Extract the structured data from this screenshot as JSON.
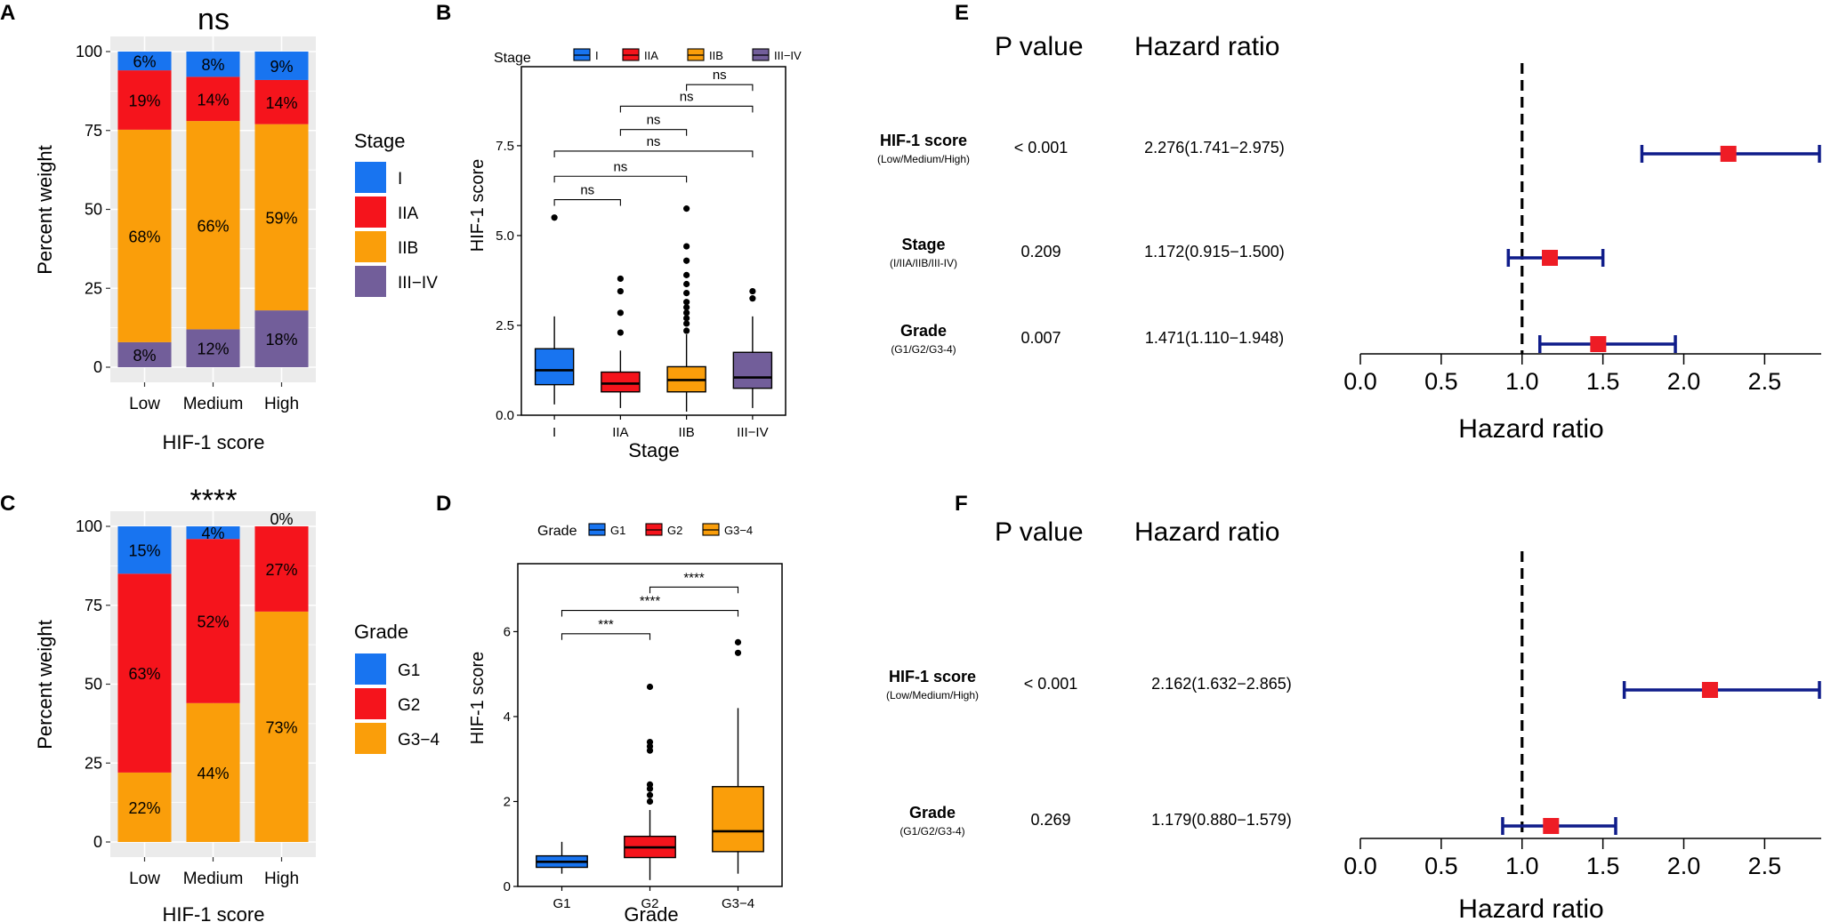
{
  "colors": {
    "blue": "#1874f0",
    "red": "#f5141c",
    "orange": "#fa9e0a",
    "purple": "#725e9a",
    "panel_bg": "#ebebeb",
    "forest_line": "#0f1c8a",
    "forest_point": "#ee1c25"
  },
  "chart_data": [
    {
      "id": "A",
      "type": "bar",
      "stacked": true,
      "title": "ns",
      "xlabel": "HIF-1 score",
      "ylabel": "Percent weight",
      "categories": [
        "Low",
        "Medium",
        "High"
      ],
      "ylim": [
        0,
        100
      ],
      "yticks": [
        "0",
        "25",
        "50",
        "75",
        "100"
      ],
      "legend_title": "Stage",
      "legend_position": "right",
      "series": [
        {
          "name": "III−IV",
          "color_key": "purple",
          "values": [
            8,
            12,
            18
          ],
          "labels": [
            "8%",
            "12%",
            "18%"
          ]
        },
        {
          "name": "IIB",
          "color_key": "orange",
          "values": [
            68,
            66,
            59
          ],
          "labels": [
            "68%",
            "66%",
            "59%"
          ]
        },
        {
          "name": "IIA",
          "color_key": "red",
          "values": [
            19,
            14,
            14
          ],
          "labels": [
            "19%",
            "14%",
            "14%"
          ]
        },
        {
          "name": "I",
          "color_key": "blue",
          "values": [
            6,
            8,
            9
          ],
          "labels": [
            "6%",
            "8%",
            "9%"
          ]
        }
      ]
    },
    {
      "id": "B",
      "type": "box",
      "xlabel": "Stage",
      "ylabel": "HIF-1 score",
      "categories": [
        "I",
        "IIA",
        "IIB",
        "III−IV"
      ],
      "ylim": [
        0,
        9.7
      ],
      "yticks": [
        "0.0",
        "2.5",
        "5.0",
        "7.5"
      ],
      "legend_title": "Stage",
      "legend_position": "top",
      "boxes": [
        {
          "q1": 0.85,
          "median": 1.25,
          "q3": 1.85,
          "whisker_low": 0.3,
          "whisker_high": 2.75,
          "outliers": [
            5.5
          ],
          "color_key": "blue"
        },
        {
          "q1": 0.65,
          "median": 0.88,
          "q3": 1.2,
          "whisker_low": 0.2,
          "whisker_high": 1.8,
          "outliers": [
            2.3,
            2.85,
            3.45,
            3.8
          ],
          "color_key": "red"
        },
        {
          "q1": 0.65,
          "median": 0.98,
          "q3": 1.35,
          "whisker_low": 0.1,
          "whisker_high": 2.25,
          "outliers": [
            2.35,
            2.55,
            2.7,
            2.85,
            3.0,
            3.15,
            3.4,
            3.65,
            3.9,
            4.3,
            4.7,
            5.75
          ],
          "color_key": "orange"
        },
        {
          "q1": 0.75,
          "median": 1.05,
          "q3": 1.75,
          "whisker_low": 0.2,
          "whisker_high": 2.75,
          "outliers": [
            3.25,
            3.45
          ],
          "color_key": "purple"
        }
      ],
      "comparisons": [
        {
          "from": 0,
          "to": 1,
          "y": 6.0,
          "label": "ns"
        },
        {
          "from": 0,
          "to": 2,
          "y": 6.65,
          "label": "ns"
        },
        {
          "from": 0,
          "to": 3,
          "y": 7.35,
          "label": "ns"
        },
        {
          "from": 1,
          "to": 2,
          "y": 7.95,
          "label": "ns"
        },
        {
          "from": 1,
          "to": 3,
          "y": 8.6,
          "label": "ns"
        },
        {
          "from": 2,
          "to": 3,
          "y": 9.2,
          "label": "ns"
        }
      ]
    },
    {
      "id": "C",
      "type": "bar",
      "stacked": true,
      "title": "****",
      "xlabel": "HIF-1 score",
      "ylabel": "Percent weight",
      "categories": [
        "Low",
        "Medium",
        "High"
      ],
      "ylim": [
        0,
        100
      ],
      "yticks": [
        "0",
        "25",
        "50",
        "75",
        "100"
      ],
      "legend_title": "Grade",
      "legend_position": "right",
      "series": [
        {
          "name": "G3−4",
          "color_key": "orange",
          "values": [
            22,
            44,
            73
          ],
          "labels": [
            "22%",
            "44%",
            "73%"
          ]
        },
        {
          "name": "G2",
          "color_key": "red",
          "values": [
            63,
            52,
            27
          ],
          "labels": [
            "63%",
            "52%",
            "27%"
          ]
        },
        {
          "name": "G1",
          "color_key": "blue",
          "values": [
            15,
            4,
            0
          ],
          "labels": [
            "15%",
            "4%",
            "0%"
          ]
        }
      ]
    },
    {
      "id": "D",
      "type": "box",
      "xlabel": "Grade",
      "ylabel": "HIF-1 score",
      "categories": [
        "G1",
        "G2",
        "G3−4"
      ],
      "ylim": [
        0,
        7.6
      ],
      "yticks": [
        "0",
        "2",
        "4",
        "6"
      ],
      "legend_title": "Grade",
      "legend_position": "top",
      "boxes": [
        {
          "q1": 0.45,
          "median": 0.58,
          "q3": 0.72,
          "whisker_low": 0.3,
          "whisker_high": 1.05,
          "outliers": [],
          "color_key": "blue"
        },
        {
          "q1": 0.68,
          "median": 0.92,
          "q3": 1.18,
          "whisker_low": 0.15,
          "whisker_high": 1.8,
          "outliers": [
            2.0,
            2.15,
            2.3,
            2.4,
            3.2,
            3.3,
            3.4,
            4.7
          ],
          "color_key": "red"
        },
        {
          "q1": 0.82,
          "median": 1.3,
          "q3": 2.35,
          "whisker_low": 0.3,
          "whisker_high": 4.2,
          "outliers": [
            5.5,
            5.75
          ],
          "color_key": "orange"
        }
      ],
      "comparisons": [
        {
          "from": 0,
          "to": 1,
          "y": 5.95,
          "label": "***"
        },
        {
          "from": 0,
          "to": 2,
          "y": 6.5,
          "label": "****"
        },
        {
          "from": 1,
          "to": 2,
          "y": 7.05,
          "label": "****"
        }
      ]
    },
    {
      "id": "E",
      "type": "forest",
      "xlabel": "Hazard ratio",
      "col_p_header": "P value",
      "col_hr_header": "Hazard ratio",
      "xlim": [
        0,
        2.85
      ],
      "xticks": [
        "0.0",
        "0.5",
        "1.0",
        "1.5",
        "2.0",
        "2.5"
      ],
      "reference": 1.0,
      "rows": [
        {
          "name": "HIF-1 score",
          "sub": "(Low/Medium/High)",
          "p": "< 0.001",
          "hr_text": "2.276(1.741−2.975)",
          "hr": 2.276,
          "lo": 1.741,
          "hi": 2.975
        },
        {
          "name": "Stage",
          "sub": "(I/IIA/IIB/III-IV)",
          "p": "0.209",
          "hr_text": "1.172(0.915−1.500)",
          "hr": 1.172,
          "lo": 0.915,
          "hi": 1.5
        },
        {
          "name": "Grade",
          "sub": "(G1/G2/G3-4)",
          "p": "0.007",
          "hr_text": "1.471(1.110−1.948)",
          "hr": 1.471,
          "lo": 1.11,
          "hi": 1.948
        }
      ]
    },
    {
      "id": "F",
      "type": "forest",
      "xlabel": "Hazard ratio",
      "col_p_header": "P value",
      "col_hr_header": "Hazard ratio",
      "xlim": [
        0,
        2.85
      ],
      "xticks": [
        "0.0",
        "0.5",
        "1.0",
        "1.5",
        "2.0",
        "2.5"
      ],
      "reference": 1.0,
      "rows": [
        {
          "name": "HIF-1 score",
          "sub": "(Low/Medium/High)",
          "p": "< 0.001",
          "hr_text": "2.162(1.632−2.865)",
          "hr": 2.162,
          "lo": 1.632,
          "hi": 2.865
        },
        {
          "name": "Grade",
          "sub": "(G1/G2/G3-4)",
          "p": "0.269",
          "hr_text": "1.179(0.880−1.579)",
          "hr": 1.179,
          "lo": 0.88,
          "hi": 1.579
        }
      ]
    }
  ]
}
